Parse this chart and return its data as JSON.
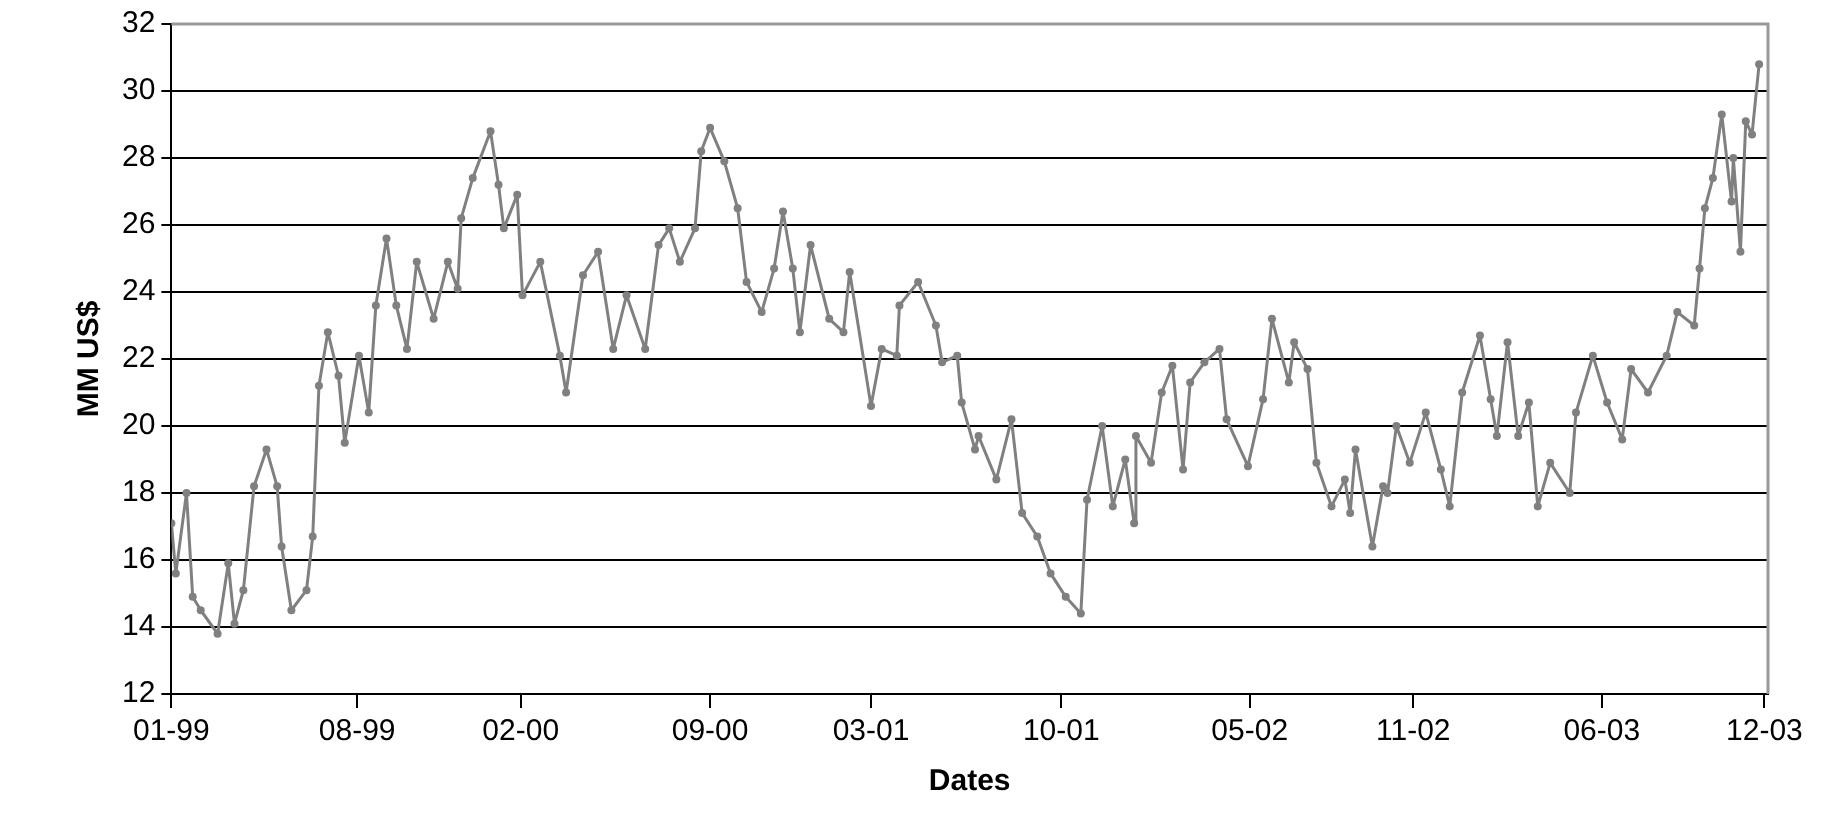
{
  "chart_data": {
    "type": "line",
    "xlabel": "Dates",
    "ylabel": "MM US$",
    "xlim": [
      "1999-01-04",
      "2003-12-05"
    ],
    "xticks": [
      {
        "value": "1999-01-04",
        "label": "01-99"
      },
      {
        "value": "1999-08-01",
        "label": "08-99"
      },
      {
        "value": "2000-02-01",
        "label": "02-00"
      },
      {
        "value": "2000-09-01",
        "label": "09-00"
      },
      {
        "value": "2001-03-01",
        "label": "03-01"
      },
      {
        "value": "2001-10-01",
        "label": "10-01"
      },
      {
        "value": "2002-05-01",
        "label": "05-02"
      },
      {
        "value": "2002-11-01",
        "label": "11-02"
      },
      {
        "value": "2003-06-01",
        "label": "06-03"
      },
      {
        "value": "2003-12-01",
        "label": "12-03"
      }
    ],
    "ylim": [
      12,
      32
    ],
    "yticks": [
      12,
      14,
      16,
      18,
      20,
      22,
      24,
      26,
      28,
      30,
      32
    ],
    "grid": "y",
    "legend": false,
    "marker": "circle",
    "line_style": "solid",
    "x": [
      "1999-01-04",
      "1999-01-09",
      "1999-01-21",
      "1999-01-28",
      "1999-02-06",
      "1999-02-25",
      "1999-03-09",
      "1999-03-16",
      "1999-03-26",
      "1999-04-07",
      "1999-04-21",
      "1999-05-03",
      "1999-05-08",
      "1999-05-19",
      "1999-06-05",
      "1999-06-12",
      "1999-06-19",
      "1999-06-29",
      "1999-07-11",
      "1999-07-18",
      "1999-08-03",
      "1999-08-14",
      "1999-08-22",
      "1999-09-03",
      "1999-09-14",
      "1999-09-26",
      "1999-10-07",
      "1999-10-26",
      "1999-11-11",
      "1999-11-22",
      "1999-11-26",
      "1999-12-09",
      "1999-12-29",
      "2000-01-07",
      "2000-01-13",
      "2000-01-28",
      "2000-02-03",
      "2000-02-23",
      "2000-03-16",
      "2000-03-23",
      "2000-04-11",
      "2000-04-28",
      "2000-05-15",
      "2000-05-30",
      "2000-06-20",
      "2000-07-05",
      "2000-07-17",
      "2000-07-29",
      "2000-08-15",
      "2000-08-22",
      "2000-09-01",
      "2000-09-17",
      "2000-10-02",
      "2000-10-12",
      "2000-10-29",
      "2000-11-12",
      "2000-11-22",
      "2000-12-03",
      "2000-12-11",
      "2000-12-23",
      "2001-01-13",
      "2001-01-29",
      "2001-02-05",
      "2001-03-01",
      "2001-03-13",
      "2001-03-30",
      "2001-04-02",
      "2001-04-23",
      "2001-05-13",
      "2001-05-20",
      "2001-06-06",
      "2001-06-11",
      "2001-06-26",
      "2001-06-30",
      "2001-07-20",
      "2001-08-06",
      "2001-08-18",
      "2001-09-04",
      "2001-09-19",
      "2001-10-06",
      "2001-10-23",
      "2001-10-30",
      "2001-11-16",
      "2001-11-28",
      "2001-12-12",
      "2001-12-22",
      "2001-12-24",
      "2002-01-10",
      "2002-01-22",
      "2002-02-03",
      "2002-02-15",
      "2002-02-23",
      "2002-03-11",
      "2002-03-28",
      "2002-04-05",
      "2002-04-29",
      "2002-05-16",
      "2002-05-26",
      "2002-06-14",
      "2002-06-20",
      "2002-07-05",
      "2002-07-15",
      "2002-08-01",
      "2002-08-16",
      "2002-08-22",
      "2002-08-28",
      "2002-09-16",
      "2002-09-28",
      "2002-10-03",
      "2002-10-13",
      "2002-10-28",
      "2002-11-15",
      "2002-12-02",
      "2002-12-12",
      "2002-12-26",
      "2003-01-15",
      "2003-01-27",
      "2003-02-03",
      "2003-02-15",
      "2003-02-27",
      "2003-03-11",
      "2003-03-21",
      "2003-04-04",
      "2003-04-26",
      "2003-05-03",
      "2003-05-22",
      "2003-06-07",
      "2003-06-24",
      "2003-07-04",
      "2003-07-23",
      "2003-08-13",
      "2003-08-25",
      "2003-09-13",
      "2003-09-19",
      "2003-09-25",
      "2003-10-04",
      "2003-10-14",
      "2003-10-25",
      "2003-10-27",
      "2003-11-04",
      "2003-11-10",
      "2003-11-17",
      "2003-11-25"
    ],
    "series": [
      {
        "color": "#808080",
        "values": [
          17.1,
          15.6,
          18.0,
          14.9,
          14.5,
          13.8,
          15.9,
          14.1,
          15.1,
          18.2,
          19.3,
          18.2,
          16.4,
          14.5,
          15.1,
          16.7,
          21.2,
          22.8,
          21.5,
          19.5,
          22.1,
          20.4,
          23.6,
          25.6,
          23.6,
          22.3,
          24.9,
          23.2,
          24.9,
          24.1,
          26.2,
          27.4,
          28.8,
          27.2,
          25.9,
          26.9,
          23.9,
          24.9,
          22.1,
          21.0,
          24.5,
          25.2,
          22.3,
          23.9,
          22.3,
          25.4,
          25.9,
          24.9,
          25.9,
          28.2,
          28.9,
          27.9,
          26.5,
          24.3,
          23.4,
          24.7,
          26.4,
          24.7,
          22.8,
          25.4,
          23.2,
          22.8,
          24.6,
          20.6,
          22.3,
          22.1,
          23.6,
          24.3,
          23.0,
          21.9,
          22.1,
          20.7,
          19.3,
          19.7,
          18.4,
          20.2,
          17.4,
          16.7,
          15.6,
          14.9,
          14.4,
          17.8,
          20.0,
          17.6,
          19.0,
          17.1,
          19.7,
          18.9,
          21.0,
          21.8,
          18.7,
          21.3,
          21.9,
          22.3,
          20.2,
          18.8,
          20.8,
          23.2,
          21.3,
          22.5,
          21.7,
          18.9,
          17.6,
          18.4,
          17.4,
          19.3,
          16.4,
          18.2,
          18.0,
          20.0,
          18.9,
          20.4,
          18.7,
          17.6,
          21.0,
          22.7,
          20.8,
          19.7,
          22.5,
          19.7,
          20.7,
          17.6,
          18.9,
          18.0,
          20.4,
          22.1,
          20.7,
          19.6,
          21.7,
          21.0,
          22.1,
          23.4,
          23.0,
          24.7,
          26.5,
          27.4,
          29.3,
          26.7,
          28.0,
          25.2,
          29.1,
          28.7,
          30.8
        ]
      }
    ]
  }
}
